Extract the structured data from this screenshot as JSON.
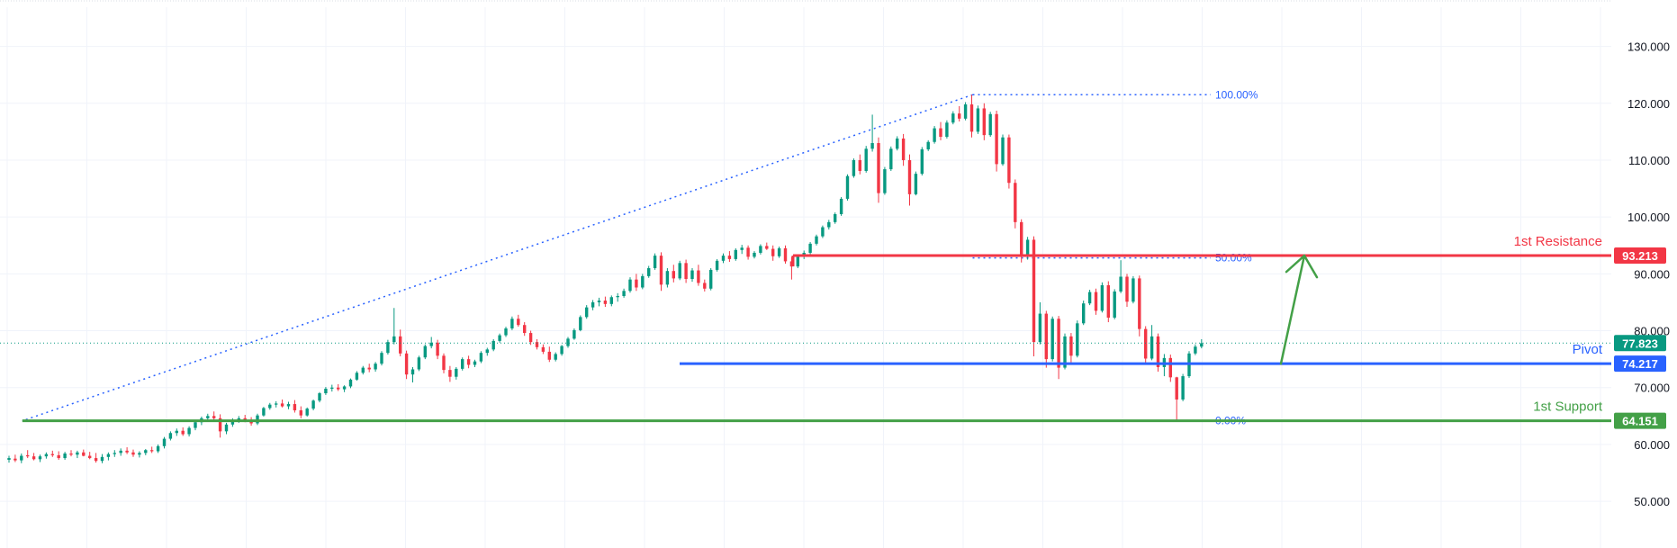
{
  "chart_data": {
    "type": "candlestick",
    "title": "",
    "ylim": [
      44,
      135
    ],
    "y_ticks": [
      50,
      60,
      70,
      80,
      90,
      100,
      110,
      120,
      130
    ],
    "y_tick_labels": [
      "50.000",
      "60.000",
      "70.000",
      "80.000",
      "90.000",
      "100.000",
      "110.000",
      "120.000",
      "130.000"
    ],
    "grid": true,
    "colors": {
      "up": "#089981",
      "down": "#f23645",
      "grid": "#f0f3fa"
    },
    "candles_ohlc": [
      [
        57.3,
        58.0,
        56.8,
        57.6
      ],
      [
        57.5,
        58.2,
        56.9,
        57.2
      ],
      [
        57.2,
        58.4,
        56.7,
        58.0
      ],
      [
        58.1,
        59.0,
        57.6,
        57.9
      ],
      [
        57.9,
        58.5,
        57.2,
        57.4
      ],
      [
        57.4,
        58.2,
        56.9,
        57.9
      ],
      [
        57.9,
        58.6,
        57.5,
        58.3
      ],
      [
        58.3,
        58.9,
        57.8,
        58.1
      ],
      [
        58.1,
        58.8,
        57.3,
        57.6
      ],
      [
        57.6,
        58.7,
        57.3,
        58.4
      ],
      [
        58.4,
        59.0,
        57.9,
        58.2
      ],
      [
        58.2,
        58.9,
        57.6,
        58.6
      ],
      [
        58.6,
        59.1,
        57.9,
        58.0
      ],
      [
        58.0,
        58.7,
        57.4,
        57.6
      ],
      [
        57.6,
        58.5,
        56.8,
        57.1
      ],
      [
        57.1,
        58.3,
        56.7,
        57.8
      ],
      [
        57.8,
        58.6,
        57.2,
        58.3
      ],
      [
        58.3,
        59.0,
        57.8,
        58.5
      ],
      [
        58.5,
        59.3,
        58.0,
        58.9
      ],
      [
        58.9,
        59.5,
        58.3,
        58.6
      ],
      [
        58.6,
        59.1,
        57.8,
        58.2
      ],
      [
        58.2,
        58.8,
        57.7,
        58.5
      ],
      [
        58.5,
        59.2,
        58.1,
        59.0
      ],
      [
        59.0,
        59.6,
        58.5,
        58.8
      ],
      [
        58.8,
        60.0,
        58.5,
        59.7
      ],
      [
        59.7,
        61.3,
        59.3,
        61.0
      ],
      [
        61.0,
        62.3,
        60.7,
        62.0
      ],
      [
        62.0,
        62.8,
        61.5,
        62.4
      ],
      [
        62.4,
        63.0,
        61.5,
        61.8
      ],
      [
        61.8,
        63.2,
        61.4,
        62.9
      ],
      [
        62.9,
        64.2,
        62.5,
        63.9
      ],
      [
        63.9,
        64.9,
        63.4,
        64.6
      ],
      [
        64.6,
        65.4,
        64.2,
        65.0
      ],
      [
        65.0,
        65.8,
        64.3,
        64.6
      ],
      [
        64.6,
        65.3,
        61.2,
        62.3
      ],
      [
        62.3,
        63.8,
        61.8,
        63.5
      ],
      [
        63.5,
        64.6,
        63.1,
        64.3
      ],
      [
        64.3,
        65.0,
        63.8,
        64.6
      ],
      [
        64.6,
        65.2,
        63.9,
        64.1
      ],
      [
        64.1,
        64.8,
        63.3,
        63.7
      ],
      [
        63.7,
        65.4,
        63.4,
        65.1
      ],
      [
        65.1,
        66.6,
        64.9,
        66.4
      ],
      [
        66.4,
        67.3,
        66.1,
        67.0
      ],
      [
        67.0,
        67.6,
        66.5,
        67.2
      ],
      [
        67.2,
        67.9,
        66.5,
        66.7
      ],
      [
        66.7,
        67.5,
        66.2,
        67.1
      ],
      [
        67.1,
        67.8,
        65.6,
        66.0
      ],
      [
        66.0,
        66.7,
        64.6,
        65.1
      ],
      [
        65.1,
        66.5,
        64.9,
        66.3
      ],
      [
        66.3,
        67.9,
        66.0,
        67.7
      ],
      [
        67.7,
        69.2,
        67.4,
        69.0
      ],
      [
        69.0,
        70.1,
        68.7,
        69.8
      ],
      [
        69.8,
        70.5,
        69.3,
        70.0
      ],
      [
        70.0,
        70.6,
        69.4,
        69.7
      ],
      [
        69.7,
        70.4,
        69.2,
        70.2
      ],
      [
        70.2,
        71.6,
        69.9,
        71.4
      ],
      [
        71.4,
        72.9,
        71.2,
        72.6
      ],
      [
        72.6,
        73.8,
        72.3,
        73.5
      ],
      [
        73.5,
        74.2,
        72.7,
        73.2
      ],
      [
        73.2,
        74.5,
        72.8,
        74.2
      ],
      [
        74.2,
        76.4,
        73.9,
        76.1
      ],
      [
        76.1,
        78.4,
        75.8,
        78.0
      ],
      [
        78.0,
        84.0,
        77.6,
        79.0
      ],
      [
        79.0,
        80.2,
        75.5,
        76.0
      ],
      [
        76.0,
        76.5,
        71.5,
        72.3
      ],
      [
        72.3,
        73.6,
        70.9,
        73.2
      ],
      [
        73.2,
        75.6,
        72.9,
        75.3
      ],
      [
        75.3,
        77.6,
        75.0,
        77.3
      ],
      [
        77.3,
        78.9,
        76.9,
        77.9
      ],
      [
        77.9,
        78.4,
        75.0,
        75.6
      ],
      [
        75.6,
        76.0,
        72.5,
        73.1
      ],
      [
        73.1,
        73.8,
        71.0,
        71.9
      ],
      [
        71.9,
        73.6,
        71.4,
        73.3
      ],
      [
        73.3,
        75.3,
        73.0,
        75.0
      ],
      [
        75.0,
        75.6,
        73.4,
        74.0
      ],
      [
        74.0,
        74.9,
        73.6,
        74.6
      ],
      [
        74.6,
        76.4,
        74.3,
        76.1
      ],
      [
        76.1,
        77.0,
        75.6,
        76.7
      ],
      [
        76.7,
        78.5,
        76.4,
        78.2
      ],
      [
        78.2,
        79.5,
        77.9,
        79.2
      ],
      [
        79.2,
        80.7,
        78.9,
        80.4
      ],
      [
        80.4,
        82.5,
        80.1,
        82.1
      ],
      [
        82.1,
        82.8,
        80.7,
        81.0
      ],
      [
        81.0,
        81.5,
        79.1,
        79.6
      ],
      [
        79.6,
        80.0,
        77.5,
        78.0
      ],
      [
        78.0,
        78.5,
        76.7,
        77.1
      ],
      [
        77.1,
        77.6,
        75.9,
        76.3
      ],
      [
        76.3,
        77.2,
        74.5,
        74.9
      ],
      [
        74.9,
        76.2,
        74.6,
        75.9
      ],
      [
        75.9,
        77.5,
        75.6,
        77.3
      ],
      [
        77.3,
        78.9,
        77.0,
        78.6
      ],
      [
        78.6,
        80.4,
        78.4,
        80.1
      ],
      [
        80.1,
        82.7,
        79.9,
        82.4
      ],
      [
        82.4,
        84.5,
        82.1,
        84.1
      ],
      [
        84.1,
        85.4,
        83.6,
        85.0
      ],
      [
        85.0,
        85.8,
        84.3,
        85.3
      ],
      [
        85.3,
        86.0,
        84.2,
        84.7
      ],
      [
        84.7,
        86.2,
        84.3,
        85.9
      ],
      [
        85.9,
        86.6,
        85.1,
        86.1
      ],
      [
        86.1,
        87.4,
        85.8,
        87.0
      ],
      [
        87.0,
        89.4,
        86.7,
        89.0
      ],
      [
        89.0,
        90.0,
        87.0,
        87.6
      ],
      [
        87.6,
        90.0,
        87.3,
        89.6
      ],
      [
        89.6,
        91.4,
        89.3,
        91.0
      ],
      [
        91.0,
        93.6,
        90.7,
        93.2
      ],
      [
        93.2,
        93.8,
        87.0,
        88.1
      ],
      [
        88.1,
        91.0,
        87.6,
        90.5
      ],
      [
        90.5,
        91.6,
        88.5,
        89.2
      ],
      [
        89.2,
        92.3,
        88.9,
        91.9
      ],
      [
        91.9,
        92.5,
        88.4,
        89.1
      ],
      [
        89.1,
        91.0,
        88.6,
        90.6
      ],
      [
        90.6,
        91.6,
        87.9,
        88.4
      ],
      [
        88.4,
        89.0,
        86.9,
        87.4
      ],
      [
        87.4,
        91.0,
        87.1,
        90.7
      ],
      [
        90.7,
        92.6,
        90.4,
        92.3
      ],
      [
        92.3,
        93.6,
        91.9,
        93.2
      ],
      [
        93.2,
        94.0,
        92.1,
        92.6
      ],
      [
        92.6,
        94.5,
        92.3,
        94.2
      ],
      [
        94.2,
        95.1,
        93.5,
        94.6
      ],
      [
        94.6,
        95.0,
        92.5,
        93.0
      ],
      [
        93.0,
        94.0,
        92.7,
        93.7
      ],
      [
        93.7,
        95.2,
        93.4,
        94.9
      ],
      [
        94.9,
        95.5,
        94.2,
        94.4
      ],
      [
        94.4,
        95.0,
        92.3,
        93.1
      ],
      [
        93.1,
        94.8,
        92.8,
        94.5
      ],
      [
        94.5,
        95.0,
        91.8,
        92.2
      ],
      [
        92.2,
        93.0,
        89.0,
        91.3
      ],
      [
        91.3,
        93.4,
        91.0,
        93.1
      ],
      [
        93.1,
        94.1,
        92.6,
        93.7
      ],
      [
        93.7,
        95.6,
        93.4,
        95.3
      ],
      [
        95.3,
        96.9,
        95.0,
        96.6
      ],
      [
        96.6,
        98.5,
        96.3,
        98.2
      ],
      [
        98.2,
        99.5,
        97.8,
        99.1
      ],
      [
        99.1,
        100.8,
        98.8,
        100.5
      ],
      [
        100.5,
        103.5,
        100.2,
        103.2
      ],
      [
        103.2,
        107.5,
        102.9,
        107.2
      ],
      [
        107.2,
        110.3,
        106.9,
        110.0
      ],
      [
        110.0,
        111.0,
        107.5,
        108.1
      ],
      [
        108.1,
        112.5,
        107.8,
        112.0
      ],
      [
        112.0,
        118.0,
        111.5,
        113.0
      ],
      [
        113.0,
        114.0,
        102.5,
        104.2
      ],
      [
        104.2,
        108.8,
        103.9,
        108.4
      ],
      [
        108.4,
        112.4,
        108.1,
        112.0
      ],
      [
        112.0,
        114.2,
        111.7,
        113.8
      ],
      [
        113.8,
        114.6,
        109.0,
        110.0
      ],
      [
        110.0,
        111.0,
        102.0,
        104.0
      ],
      [
        104.0,
        108.0,
        103.8,
        107.6
      ],
      [
        107.6,
        112.3,
        107.3,
        111.9
      ],
      [
        111.9,
        113.5,
        111.6,
        113.2
      ],
      [
        113.2,
        116.0,
        112.9,
        115.6
      ],
      [
        115.6,
        116.7,
        113.5,
        114.1
      ],
      [
        114.1,
        117.0,
        113.8,
        116.6
      ],
      [
        116.6,
        118.6,
        116.3,
        118.2
      ],
      [
        118.2,
        119.5,
        116.8,
        117.3
      ],
      [
        117.3,
        120.2,
        117.0,
        119.8
      ],
      [
        119.8,
        121.5,
        114.0,
        115.0
      ],
      [
        115.0,
        119.6,
        114.6,
        119.1
      ],
      [
        119.1,
        120.0,
        113.5,
        114.4
      ],
      [
        114.4,
        118.5,
        114.1,
        118.1
      ],
      [
        118.1,
        118.7,
        108.0,
        109.3
      ],
      [
        109.3,
        114.5,
        109.0,
        114.0
      ],
      [
        114.0,
        114.5,
        105.0,
        106.0
      ],
      [
        106.0,
        106.6,
        98.0,
        99.1
      ],
      [
        99.1,
        99.6,
        92.0,
        93.0
      ],
      [
        93.0,
        96.5,
        92.5,
        96.0
      ],
      [
        96.0,
        96.6,
        75.5,
        78.0
      ],
      [
        78.0,
        85.0,
        77.6,
        83.0
      ],
      [
        83.0,
        83.5,
        73.5,
        75.0
      ],
      [
        75.0,
        82.5,
        74.6,
        82.1
      ],
      [
        82.1,
        82.6,
        71.5,
        73.5
      ],
      [
        73.5,
        79.5,
        73.2,
        79.0
      ],
      [
        79.0,
        79.6,
        74.2,
        75.6
      ],
      [
        75.6,
        81.8,
        75.3,
        81.3
      ],
      [
        81.3,
        85.3,
        81.0,
        84.8
      ],
      [
        84.8,
        87.2,
        84.5,
        86.8
      ],
      [
        86.8,
        87.4,
        82.8,
        83.5
      ],
      [
        83.5,
        88.5,
        83.2,
        88.0
      ],
      [
        88.0,
        88.7,
        81.5,
        82.3
      ],
      [
        82.3,
        87.3,
        82.0,
        86.9
      ],
      [
        86.9,
        92.4,
        86.6,
        89.5
      ],
      [
        89.5,
        90.0,
        84.2,
        85.1
      ],
      [
        85.1,
        89.6,
        84.8,
        89.2
      ],
      [
        89.2,
        89.7,
        79.0,
        80.3
      ],
      [
        80.3,
        80.8,
        74.0,
        75.1
      ],
      [
        75.1,
        81.0,
        74.8,
        79.0
      ],
      [
        79.0,
        79.5,
        72.8,
        73.6
      ],
      [
        73.6,
        75.9,
        72.0,
        75.2
      ],
      [
        75.2,
        75.8,
        71.0,
        71.8
      ],
      [
        71.8,
        71.9,
        64.2,
        67.9
      ],
      [
        67.9,
        72.4,
        67.6,
        72.0
      ],
      [
        72.0,
        76.4,
        71.7,
        76.0
      ],
      [
        76.0,
        77.6,
        75.7,
        77.2
      ],
      [
        77.2,
        78.5,
        76.9,
        77.8
      ]
    ],
    "levels": [
      {
        "name": "1st Resistance",
        "value": 93.213,
        "badge": "93.213",
        "color": "#f23645"
      },
      {
        "name": "Pivot",
        "value": 74.217,
        "badge": "74.217",
        "color": "#2962ff"
      },
      {
        "name": "1st Support",
        "value": 64.151,
        "badge": "64.151",
        "color": "#43a047"
      }
    ],
    "last_price": {
      "value": 77.823,
      "badge": "77.823",
      "color": "#089981"
    },
    "fibonacci": {
      "high": 121.5,
      "low": 64.151,
      "color": "#2962ff",
      "levels": [
        {
          "label": "100.00%",
          "value": 121.5
        },
        {
          "label": "50.00%",
          "value": 92.8
        },
        {
          "label": "0.00%",
          "value": 64.151
        }
      ]
    },
    "arrow": {
      "color": "#43a047",
      "direction": "up",
      "from_value": 74.2,
      "to_value": 93.2
    }
  }
}
